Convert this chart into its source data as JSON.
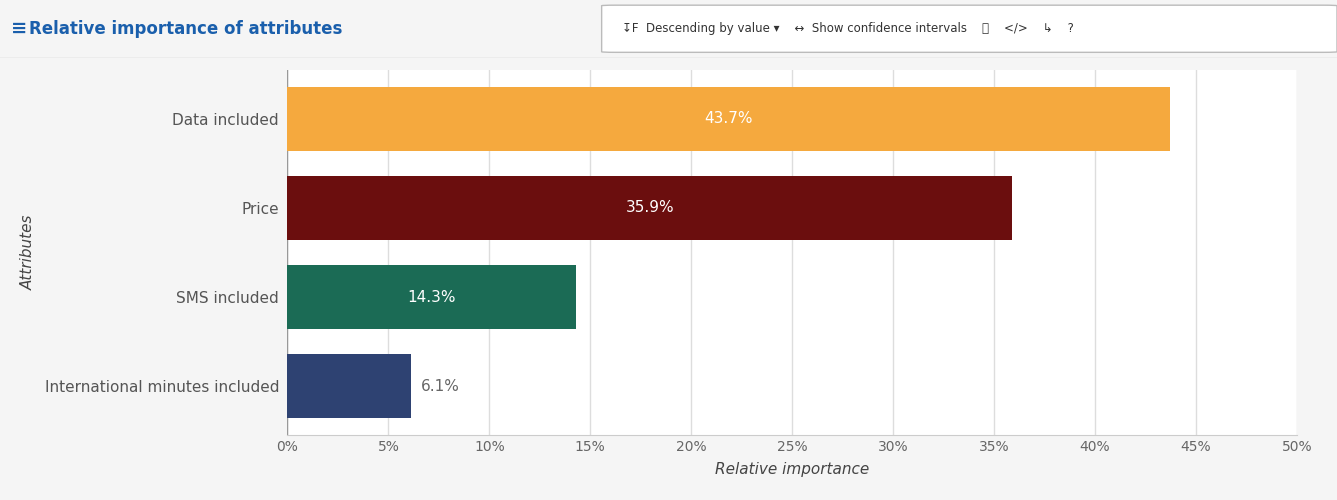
{
  "title": "Relative importance of attributes",
  "categories": [
    "Data included",
    "Price",
    "SMS included",
    "International minutes included"
  ],
  "values": [
    43.7,
    35.9,
    14.3,
    6.1
  ],
  "bar_colors": [
    "#F5A93E",
    "#6B0E0E",
    "#1B6B55",
    "#2E4272"
  ],
  "bar_labels": [
    "43.7%",
    "35.9%",
    "14.3%",
    "6.1%"
  ],
  "xlabel": "Relative importance",
  "ylabel": "Attributes",
  "xlim": [
    0,
    50
  ],
  "xticks": [
    0,
    5,
    10,
    15,
    20,
    25,
    30,
    35,
    40,
    45,
    50
  ],
  "xtick_labels": [
    "0%",
    "5%",
    "10%",
    "15%",
    "20%",
    "25%",
    "30%",
    "35%",
    "40%",
    "45%",
    "50%"
  ],
  "background_color": "#f5f5f5",
  "plot_bg_color": "#ffffff",
  "title_color": "#1a5fac",
  "label_color_inside": "#ffffff",
  "label_color_outside": "#666666",
  "grid_color": "#dddddd",
  "header_bg": "#efefef",
  "toolbar_text": "↓F Descending by value ▼  ↔ Show confidence intervals",
  "bar_height": 0.72
}
